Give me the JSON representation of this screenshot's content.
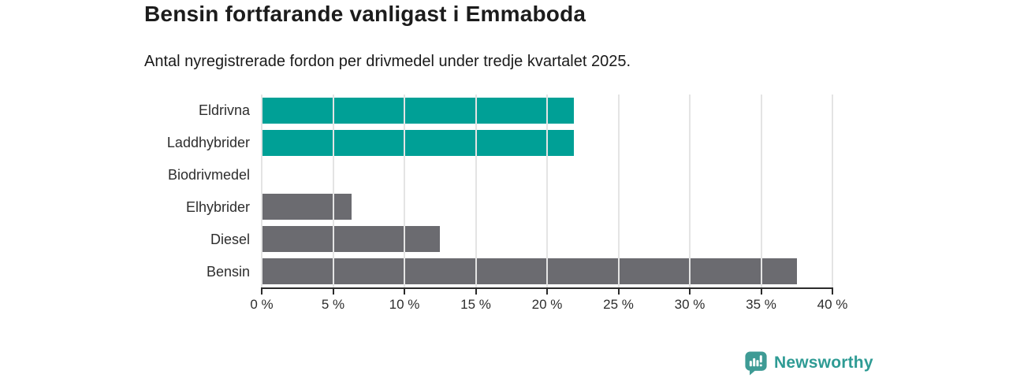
{
  "chart_data": {
    "type": "bar",
    "orientation": "horizontal",
    "title": "Bensin fortfarande vanligast i Emmaboda",
    "subtitle": "Antal nyregistrerade fordon per drivmedel under tredje kvartalet 2025.",
    "categories": [
      "Eldrivna",
      "Laddhybrider",
      "Biodrivmedel",
      "Elhybrider",
      "Diesel",
      "Bensin"
    ],
    "values": [
      21.9,
      21.9,
      0,
      6.3,
      12.5,
      37.5
    ],
    "unit": "%",
    "xlim": [
      0,
      40
    ],
    "xticks": [
      0,
      5,
      10,
      15,
      20,
      25,
      30,
      35,
      40
    ],
    "xtick_labels": [
      "0 %",
      "5 %",
      "10 %",
      "15 %",
      "20 %",
      "25 %",
      "30 %",
      "35 %",
      "40 %"
    ],
    "grid": "vertical",
    "legend": "none",
    "bar_colors": [
      "#00A096",
      "#00A096",
      "#6B6B70",
      "#6B6B70",
      "#6B6B70",
      "#6B6B70"
    ],
    "colors": {
      "teal": "#00A096",
      "gray": "#6B6B70",
      "gridline": "#E4E4E4",
      "axis": "#2B2B2B",
      "title_text": "#1C1C1C",
      "label_text": "#2D2D2D"
    }
  },
  "footer": {
    "brand": "Newsworthy",
    "logo_icon": "bar-chart-badge-icon",
    "brand_text_color": "#2E9B94",
    "brand_badge_color": "#3E9B95"
  }
}
